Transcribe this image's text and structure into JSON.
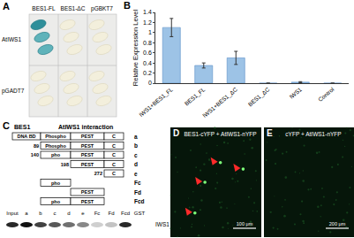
{
  "panels": {
    "A": {
      "label": "A",
      "columns": [
        "BES1-FL",
        "BES1-ΔC",
        "pGBKT7"
      ],
      "rows": [
        "AtIWS1",
        "pGADT7"
      ],
      "colony_blue": [
        [
          true,
          false,
          false
        ],
        [
          false,
          false,
          false
        ]
      ]
    },
    "C": {
      "label": "C",
      "header": "BES1",
      "interaction_title": "AtIWS1 interaction",
      "domains": [
        "DNA BD",
        "Phospho",
        "PEST",
        "C"
      ],
      "constructs": [
        {
          "id": "a",
          "segments": [
            {
              "text": "DNA BD",
              "domain": 0
            },
            {
              "text": "Phospho",
              "domain": 1
            },
            {
              "text": "PEST",
              "domain": 2
            },
            {
              "text": "C",
              "domain": 3
            }
          ]
        },
        {
          "id": "b",
          "start": 89,
          "segments": [
            {
              "text": "Phospho",
              "domain": 1
            },
            {
              "text": "PEST",
              "domain": 2
            },
            {
              "text": "C",
              "domain": 3
            }
          ]
        },
        {
          "id": "c",
          "start": 140,
          "segments": [
            {
              "text": "pho",
              "domain": 1
            },
            {
              "text": "PEST",
              "domain": 2
            },
            {
              "text": "C",
              "domain": 3
            }
          ]
        },
        {
          "id": "d",
          "start": 198,
          "segments": [
            {
              "text": "PEST",
              "domain": 2
            },
            {
              "text": "C",
              "domain": 3
            }
          ]
        },
        {
          "id": "e",
          "start": 272,
          "segments": [
            {
              "text": "C",
              "domain": 3
            }
          ]
        },
        {
          "id": "Fc",
          "segments": [
            {
              "text": "pho",
              "domain": 1
            }
          ]
        },
        {
          "id": "Fd",
          "segments": [
            {
              "text": "PEST",
              "domain": 2
            }
          ]
        },
        {
          "id": "Fcd",
          "segments": [
            {
              "text": "pho",
              "domain": 1
            },
            {
              "text": "PEST",
              "domain": 2
            }
          ]
        }
      ],
      "blot": {
        "lanes": [
          "Input",
          "a",
          "b",
          "c",
          "d",
          "e",
          "Fc",
          "Fd",
          "Fcd",
          "GST"
        ],
        "band_strength": [
          0.9,
          1.0,
          0.8,
          0.7,
          0.6,
          0.5,
          0.2,
          0.25,
          0.9,
          0
        ],
        "protein": "IWS1"
      }
    },
    "D": {
      "label": "D",
      "caption": "BES1-cYFP + AtIWS1-nYFP",
      "scale_bar": "100 μm"
    },
    "E": {
      "label": "E",
      "caption": "cYFP + AtIWS1-nYFP",
      "scale_bar": "200 μm"
    }
  },
  "chart_data": {
    "label": "B",
    "type": "bar",
    "categories": [
      "IWS1+BES1_FL",
      "BES1_FL",
      "IWS1+BES1_ΔC",
      "BES1_ΔC",
      "IWS1",
      "Control"
    ],
    "values": [
      1.1,
      0.35,
      0.5,
      0.0,
      0.02,
      0.0
    ],
    "error": [
      0.18,
      0.05,
      0.13,
      0.0,
      0.01,
      0.0
    ],
    "color": "#9dc3e6",
    "y_label": "Relative Expression Level",
    "ylim": [
      0,
      1.4
    ],
    "yticks": [
      0,
      0.2,
      0.4,
      0.6,
      0.8,
      1,
      1.2,
      1.4
    ],
    "grid": false
  }
}
